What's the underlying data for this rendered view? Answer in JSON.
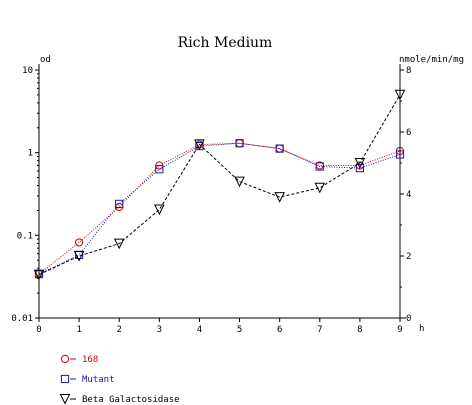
{
  "chart_data": {
    "type": "line",
    "title": "Rich Medium",
    "ylabel_left": "od",
    "ylabel_right": "nmole/min/mg",
    "xlabel": "h",
    "x": [
      0,
      1,
      2,
      3,
      4,
      5,
      6,
      7,
      8,
      9
    ],
    "x_ticks": [
      "0",
      "1",
      "2",
      "3",
      "4",
      "5",
      "6",
      "7",
      "8",
      "9"
    ],
    "xlim": [
      0,
      9
    ],
    "left_axis": {
      "scale": "log",
      "ylim": [
        0.01,
        10
      ],
      "ticks": [
        "0.01",
        "0.1",
        "1",
        "10"
      ]
    },
    "right_axis": {
      "scale": "linear",
      "ylim": [
        0,
        8
      ],
      "ticks": [
        "0",
        "2",
        "4",
        "6",
        "8"
      ]
    },
    "grid": false,
    "legend_position": "bottom-left",
    "series": [
      {
        "name": "168",
        "axis": "left",
        "marker": "circle",
        "line": "dotted",
        "color": "#cc0000",
        "values": [
          0.034,
          0.082,
          0.22,
          0.7,
          1.25,
          1.3,
          1.12,
          0.7,
          0.7,
          1.05
        ]
      },
      {
        "name": "Mutant",
        "axis": "left",
        "marker": "square",
        "line": "dotted",
        "color": "#1a1aaa",
        "values": [
          0.034,
          0.058,
          0.24,
          0.63,
          1.2,
          1.3,
          1.12,
          0.68,
          0.65,
          0.95
        ]
      },
      {
        "name": "Beta Galactosidase",
        "axis": "right",
        "marker": "triangle-down",
        "line": "dashed",
        "color": "#000000",
        "values": [
          1.4,
          2.0,
          2.4,
          3.5,
          5.6,
          4.4,
          3.9,
          4.2,
          5.0,
          7.2
        ]
      }
    ]
  }
}
